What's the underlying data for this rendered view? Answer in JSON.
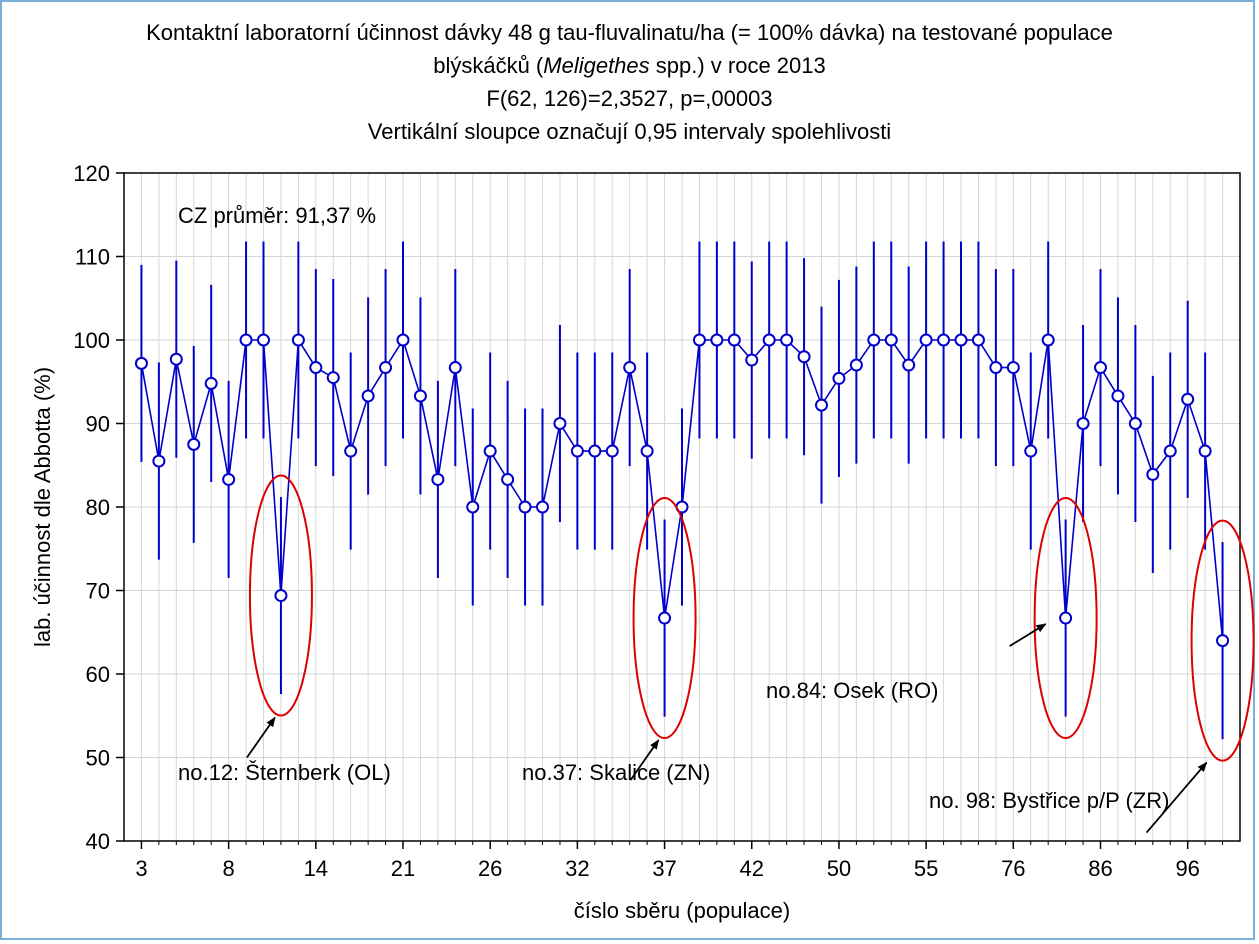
{
  "chart_data": {
    "type": "line",
    "title_lines": [
      "Kontaktní laboratorní účinnost dávky 48 g tau-fluvalinatu/ha (= 100% dávka) na testované populace",
      "F(62, 126)=2,3527, p=,00003",
      "Vertikální sloupce označují 0,95 intervaly spolehlivosti"
    ],
    "title_line2": {
      "before": "blýskáčků (",
      "italic": "Meligethes",
      "after": " spp.) v roce 2013"
    },
    "xlabel": "číslo sběru (populace)",
    "ylabel": "lab. účinnost dle Abbotta (%)",
    "ylim": [
      40,
      120
    ],
    "yticks": [
      40,
      50,
      60,
      70,
      80,
      90,
      100,
      110,
      120
    ],
    "xtick_labels": [
      "3",
      "8",
      "14",
      "21",
      "26",
      "32",
      "37",
      "42",
      "50",
      "55",
      "76",
      "86",
      "96"
    ],
    "xtick_positions": [
      1,
      6,
      11,
      16,
      21,
      26,
      31,
      36,
      41,
      46,
      51,
      56,
      61
    ],
    "x": [
      1,
      2,
      3,
      4,
      5,
      6,
      7,
      8,
      9,
      10,
      11,
      12,
      13,
      14,
      15,
      16,
      17,
      18,
      19,
      20,
      21,
      22,
      23,
      24,
      25,
      26,
      27,
      28,
      29,
      30,
      31,
      32,
      33,
      34,
      35,
      36,
      37,
      38,
      39,
      40,
      41,
      42,
      43,
      44,
      45,
      46,
      47,
      48,
      49,
      50,
      51,
      52,
      53,
      54,
      55,
      56,
      57,
      58,
      59,
      60,
      61,
      62,
      63
    ],
    "values": [
      97.2,
      85.5,
      97.7,
      87.5,
      94.8,
      83.3,
      100,
      100,
      69.4,
      100,
      96.7,
      95.5,
      86.7,
      93.3,
      96.7,
      100,
      93.3,
      83.3,
      96.7,
      80,
      86.7,
      83.3,
      80,
      80,
      90,
      86.7,
      86.7,
      86.7,
      96.7,
      86.7,
      66.7,
      80,
      100,
      100,
      100,
      97.6,
      100,
      100,
      98,
      92.2,
      95.4,
      97,
      100,
      100,
      97,
      100,
      100,
      100,
      100,
      96.7,
      96.7,
      86.7,
      100,
      66.7,
      90,
      96.7,
      93.3,
      90,
      83.9,
      86.7,
      92.9,
      86.7,
      64
    ],
    "ci_low": [
      85.4,
      73.7,
      85.9,
      75.7,
      83,
      71.5,
      88.2,
      88.2,
      57.6,
      88.2,
      84.9,
      83.7,
      74.9,
      81.5,
      84.9,
      88.2,
      81.5,
      71.5,
      84.9,
      68.2,
      74.9,
      71.5,
      68.2,
      68.2,
      78.2,
      74.9,
      74.9,
      74.9,
      84.9,
      74.9,
      54.9,
      68.2,
      88.2,
      88.2,
      88.2,
      85.8,
      88.2,
      88.2,
      86.2,
      80.4,
      83.6,
      85.2,
      88.2,
      88.2,
      85.2,
      88.2,
      88.2,
      88.2,
      88.2,
      84.9,
      84.9,
      74.9,
      88.2,
      54.9,
      78.2,
      84.9,
      81.5,
      78.2,
      72.1,
      74.9,
      81.1,
      74.9,
      52.2
    ],
    "ci_high": [
      109,
      97.3,
      109.5,
      99.3,
      106.6,
      95.1,
      111.8,
      111.8,
      81.2,
      111.8,
      108.5,
      107.3,
      98.5,
      105.1,
      108.5,
      111.8,
      105.1,
      95.1,
      108.5,
      91.8,
      98.5,
      95.1,
      91.8,
      91.8,
      101.8,
      98.5,
      98.5,
      98.5,
      108.5,
      98.5,
      78.5,
      91.8,
      111.8,
      111.8,
      111.8,
      109.4,
      111.8,
      111.8,
      109.8,
      104,
      107.2,
      108.8,
      111.8,
      111.8,
      108.8,
      111.8,
      111.8,
      111.8,
      111.8,
      108.5,
      108.5,
      98.5,
      111.8,
      78.5,
      101.8,
      108.5,
      105.1,
      101.8,
      95.7,
      98.5,
      104.7,
      98.5,
      75.8
    ],
    "series_color": "#0000cc",
    "highlight_color": "#dd0000",
    "grid": true,
    "annotations": [
      {
        "text": "CZ průměr: 91,37 %"
      },
      {
        "text": "no.12: Šternberk (OL)",
        "point_index": 9
      },
      {
        "text": "no.37: Skalice (ZN)",
        "point_index": 31
      },
      {
        "text": "no.84: Osek (RO)",
        "point_index": 54
      },
      {
        "text": "no. 98: Bystřice p/P (ZR)",
        "point_index": 63
      }
    ]
  }
}
